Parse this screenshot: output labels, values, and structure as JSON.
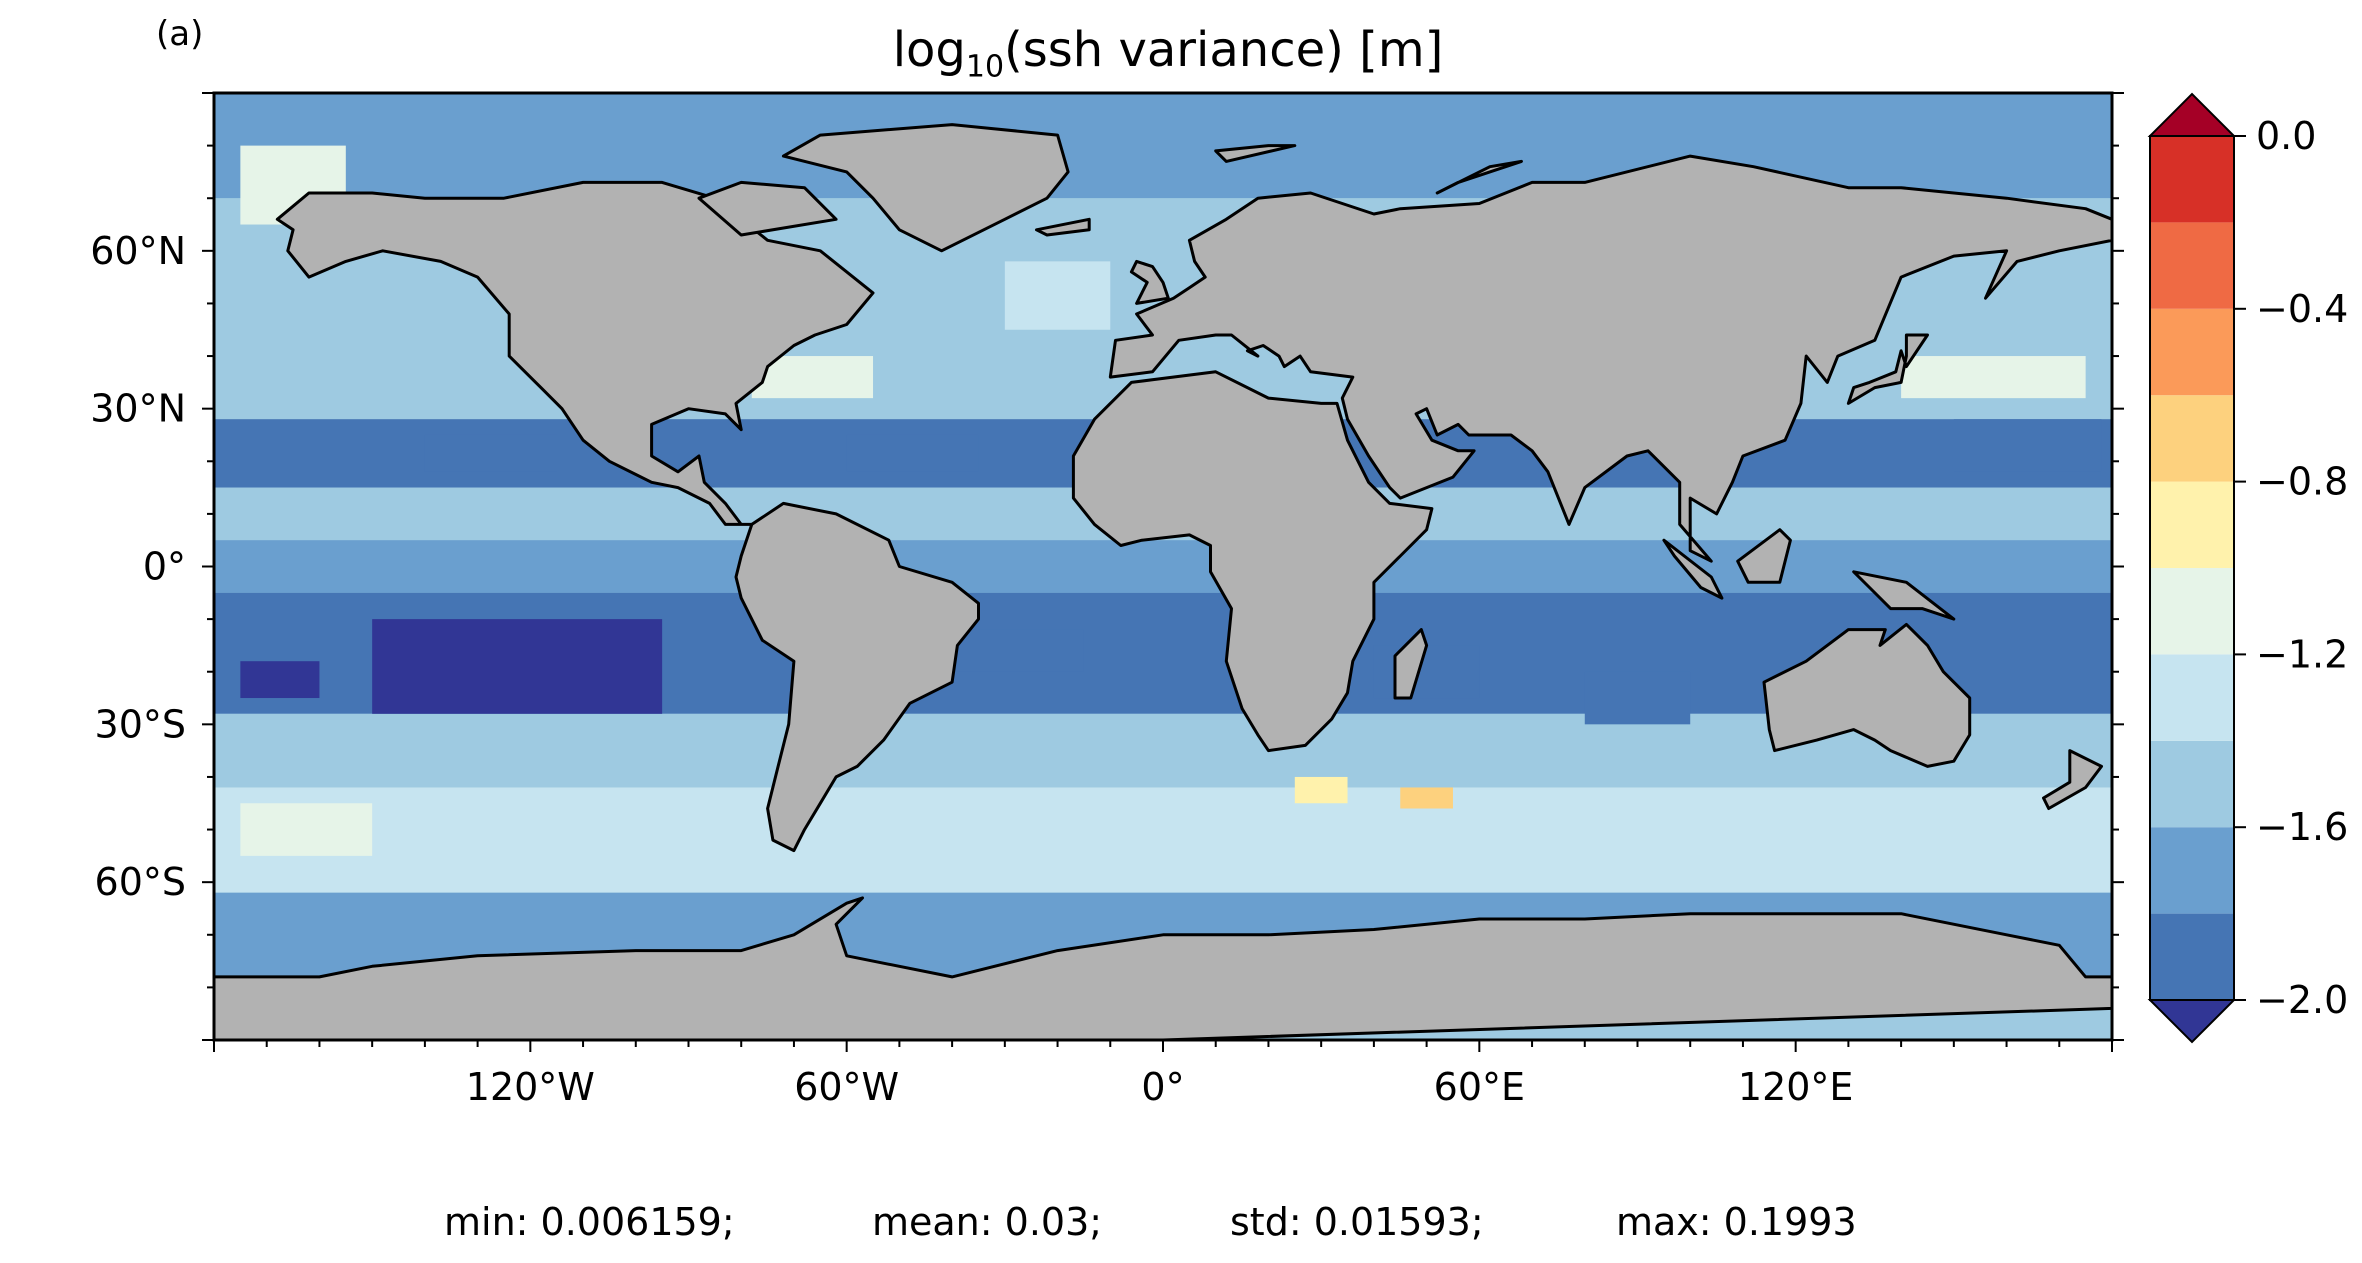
{
  "panel_label": "(a)",
  "title": {
    "prefix": "log",
    "subscript": "10",
    "suffix": "(ssh variance) [m]"
  },
  "map": {
    "projection": "PlateCarree",
    "lon_range": [
      -180,
      180
    ],
    "lat_range": [
      -90,
      90
    ],
    "land_color": "#b2b2b2",
    "coastline_color": "#000000",
    "xticks": [
      {
        "lon": -120,
        "label": "120°W"
      },
      {
        "lon": -60,
        "label": "60°W"
      },
      {
        "lon": 0,
        "label": "0°"
      },
      {
        "lon": 60,
        "label": "60°E"
      },
      {
        "lon": 120,
        "label": "120°E"
      }
    ],
    "yticks": [
      {
        "lat": 60,
        "label": "60°N"
      },
      {
        "lat": 30,
        "label": "30°N"
      },
      {
        "lat": 0,
        "label": "0°"
      },
      {
        "lat": -30,
        "label": "30°S"
      },
      {
        "lat": -60,
        "label": "60°S"
      }
    ]
  },
  "colorbar": {
    "levels": [
      -2.0,
      -1.8,
      -1.6,
      -1.4,
      -1.2,
      -1.0,
      -0.8,
      -0.6,
      -0.4,
      -0.2,
      0.0
    ],
    "colors": [
      "#4575b4",
      "#6a9fcf",
      "#9ecae1",
      "#c6e4f0",
      "#e6f4e8",
      "#fff2ac",
      "#fdd17e",
      "#fb9a59",
      "#ef6a44",
      "#d73027"
    ],
    "extend_low_color": "#313695",
    "extend_high_color": "#a50026",
    "tick_labels": [
      {
        "value": 0.0,
        "label": "0.0"
      },
      {
        "value": -0.4,
        "label": "−0.4"
      },
      {
        "value": -0.8,
        "label": "−0.8"
      },
      {
        "value": -1.2,
        "label": "−1.2"
      },
      {
        "value": -1.6,
        "label": "−1.6"
      },
      {
        "value": -2.0,
        "label": "−2.0"
      }
    ]
  },
  "field_bands": [
    {
      "lat_range": [
        70,
        90
      ],
      "value": -1.7
    },
    {
      "lat_range": [
        45,
        70
      ],
      "value": -1.45
    },
    {
      "lat_range": [
        28,
        45
      ],
      "value": -1.5
    },
    {
      "lat_range": [
        15,
        28
      ],
      "value": -1.85
    },
    {
      "lat_range": [
        5,
        15
      ],
      "value": -1.55
    },
    {
      "lat_range": [
        -5,
        5
      ],
      "value": -1.7
    },
    {
      "lat_range": [
        -28,
        -5
      ],
      "value": -1.9
    },
    {
      "lat_range": [
        -42,
        -28
      ],
      "value": -1.55
    },
    {
      "lat_range": [
        -62,
        -42
      ],
      "value": -1.4
    },
    {
      "lat_range": [
        -78,
        -62
      ],
      "value": -1.65
    }
  ],
  "stats": {
    "min": "min: 0.006159;",
    "mean": "mean: 0.03;",
    "std": "std: 0.01593;",
    "max": "max: 0.1993"
  }
}
